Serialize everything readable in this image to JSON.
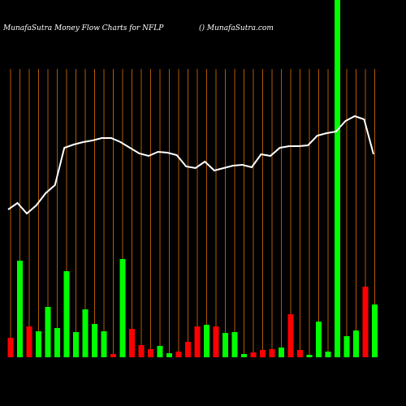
{
  "chart_data": {
    "type": "bar",
    "title": "MunafaSutra  Money Flow  Charts for NFLP",
    "subtitle": "() MunafaSutra.com",
    "ylim": [
      0,
      440
    ],
    "grid": true,
    "grid_color": "#b35a00",
    "series": [
      {
        "type": "bar",
        "values": [
          24,
          119,
          38,
          32,
          62,
          36,
          106,
          31,
          59,
          41,
          32,
          4,
          121,
          35,
          15,
          10,
          14,
          5,
          7,
          19,
          38,
          40,
          38,
          30,
          31,
          4,
          6,
          9,
          10,
          12,
          53,
          9,
          3,
          44,
          7,
          440,
          26,
          33,
          87,
          65
        ],
        "colors": [
          "#ff0000",
          "#00ff00",
          "#ff0000",
          "#00ff00",
          "#00ff00",
          "#00ff00",
          "#00ff00",
          "#00ff00",
          "#00ff00",
          "#00ff00",
          "#00ff00",
          "#ff0000",
          "#00ff00",
          "#ff0000",
          "#ff0000",
          "#ff0000",
          "#00ff00",
          "#00ff00",
          "#ff0000",
          "#ff0000",
          "#ff0000",
          "#00ff00",
          "#ff0000",
          "#00ff00",
          "#00ff00",
          "#00ff00",
          "#ff0000",
          "#ff0000",
          "#ff0000",
          "#00ff00",
          "#ff0000",
          "#ff0000",
          "#00ff00",
          "#00ff00",
          "#00ff00",
          "#00ff00",
          "#00ff00",
          "#00ff00",
          "#ff0000",
          "#00ff00"
        ]
      },
      {
        "type": "line",
        "color": "#ffffff",
        "values": [
          182,
          190,
          177,
          187,
          202,
          212,
          258,
          262,
          265,
          267,
          270,
          270,
          265,
          258,
          251,
          248,
          253,
          252,
          249,
          235,
          233,
          241,
          230,
          233,
          236,
          237,
          234,
          250,
          248,
          258,
          260,
          260,
          261,
          273,
          276,
          278,
          291,
          297,
          293,
          250
        ]
      }
    ]
  }
}
